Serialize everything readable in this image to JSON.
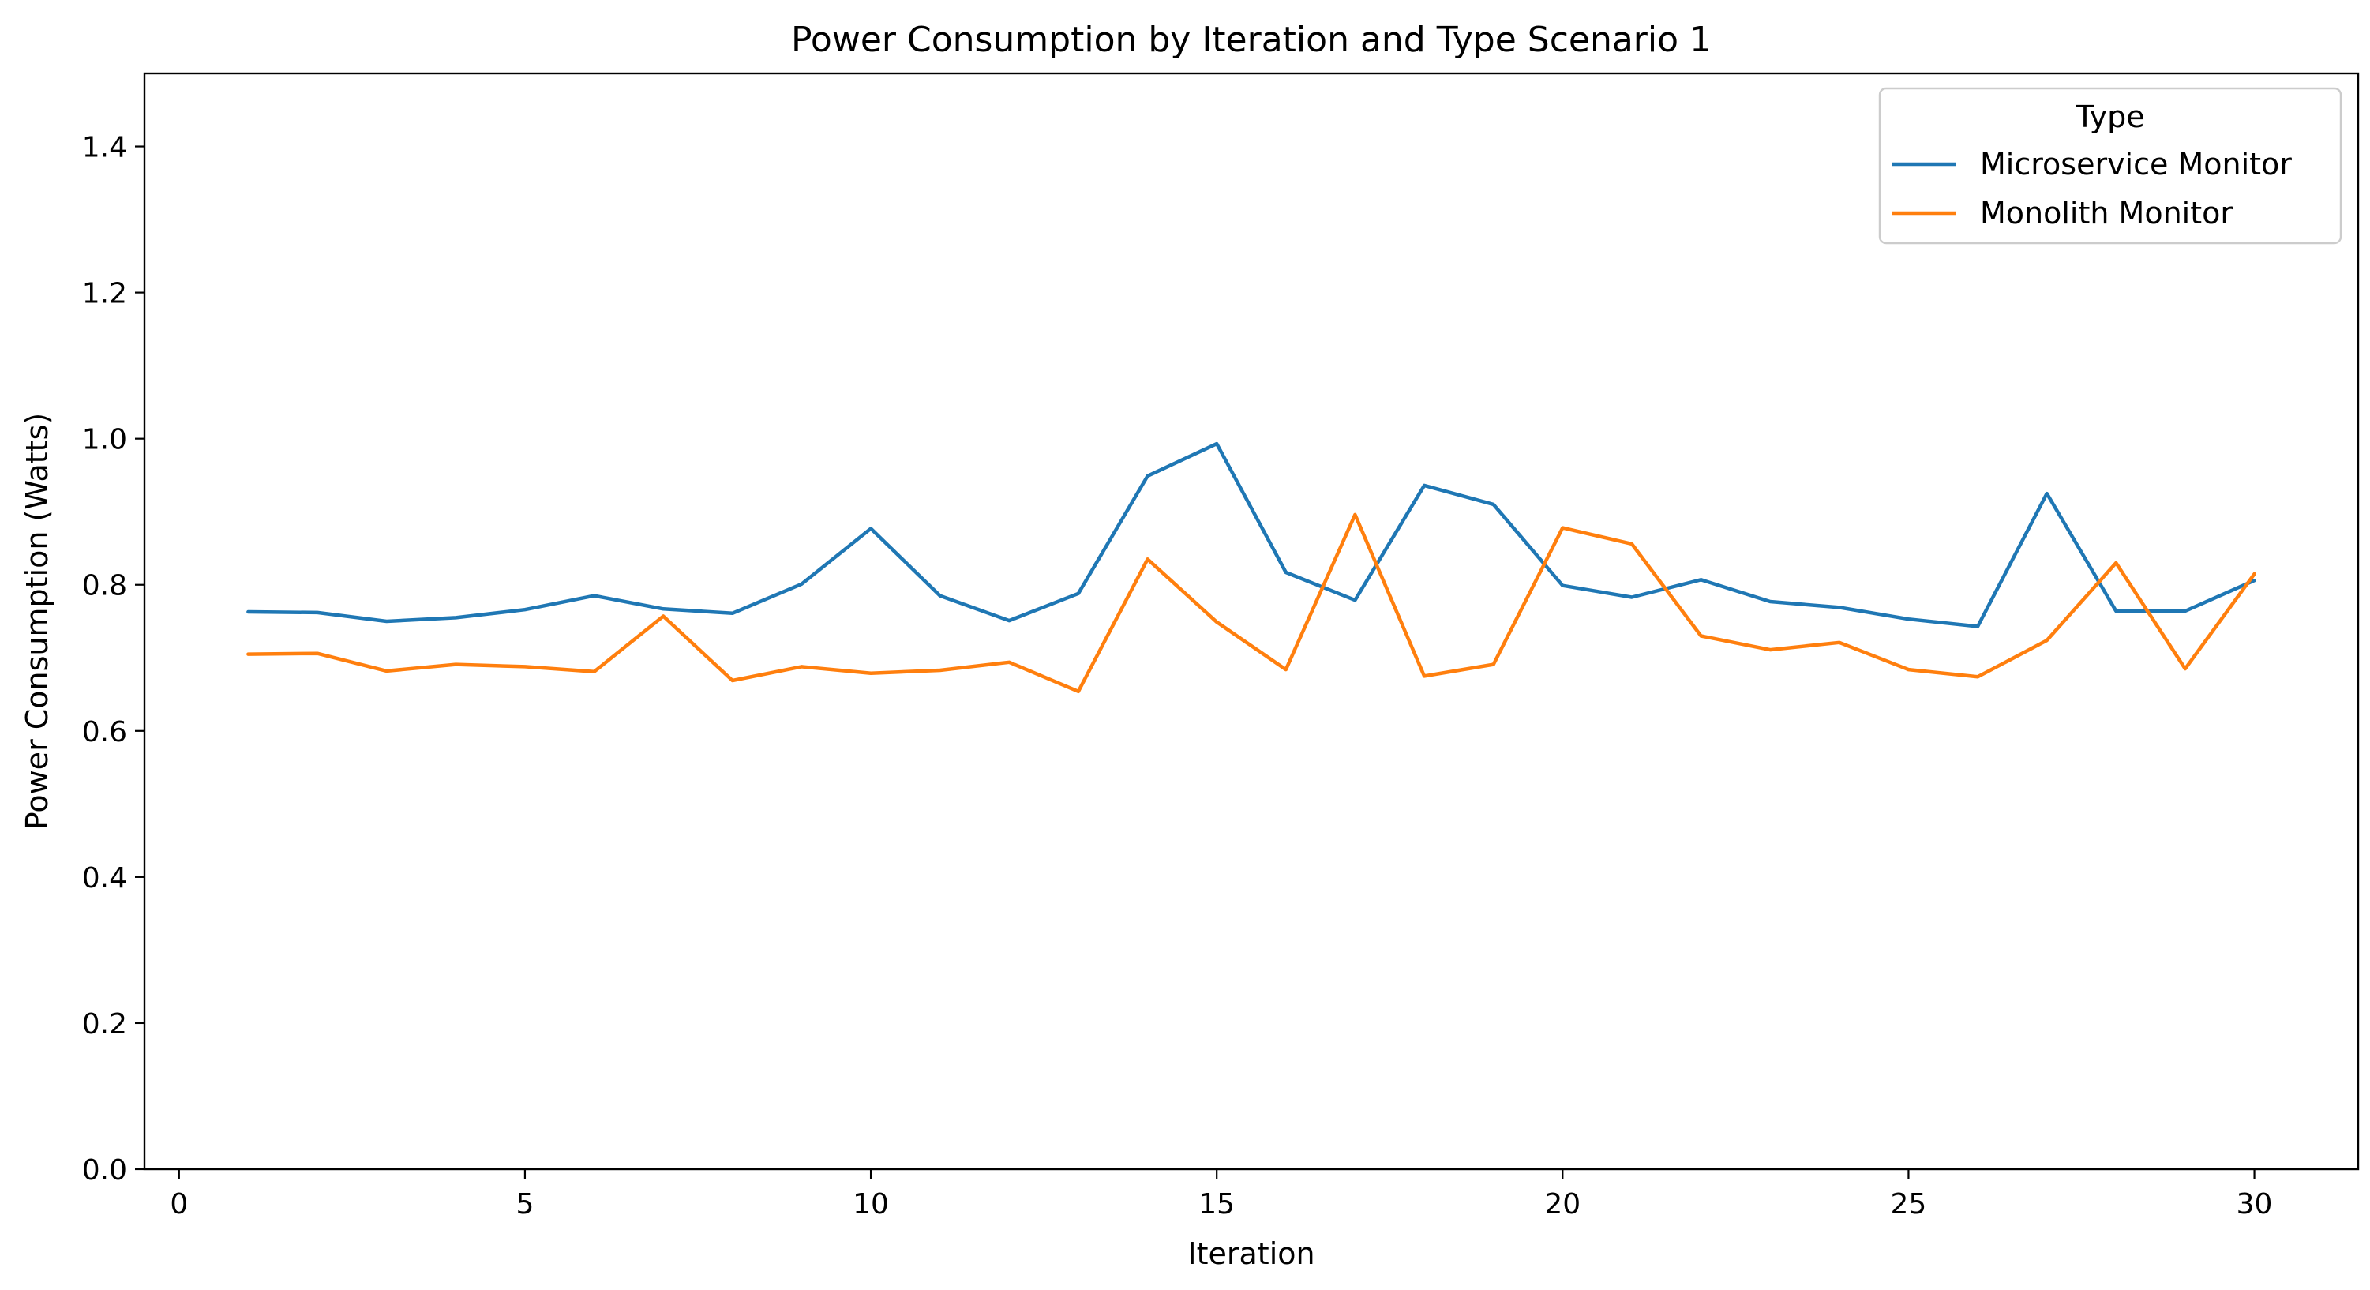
{
  "chart_data": {
    "type": "line",
    "title": "Power Consumption by Iteration and Type Scenario 1",
    "xlabel": "Iteration",
    "ylabel": "Power Consumption (Watts)",
    "xlim": [
      -0.5,
      31.5
    ],
    "ylim": [
      0.0,
      1.5
    ],
    "xticks": [
      0,
      5,
      10,
      15,
      20,
      25,
      30
    ],
    "yticks": [
      0.0,
      0.2,
      0.4,
      0.6,
      0.8,
      1.0,
      1.2,
      1.4
    ],
    "grid": false,
    "legend": {
      "title": "Type",
      "placement": "top-right"
    },
    "x": [
      1,
      2,
      3,
      4,
      5,
      6,
      7,
      8,
      9,
      10,
      11,
      12,
      13,
      14,
      15,
      16,
      17,
      18,
      19,
      20,
      21,
      22,
      23,
      24,
      25,
      26,
      27,
      28,
      29,
      30
    ],
    "series": [
      {
        "name": "Microservice Monitor",
        "color": "#1f77b4",
        "values": [
          0.763,
          0.762,
          0.75,
          0.755,
          0.766,
          0.785,
          0.767,
          0.761,
          0.801,
          0.877,
          0.785,
          0.751,
          0.788,
          0.949,
          0.993,
          0.817,
          0.779,
          0.936,
          0.91,
          0.799,
          0.783,
          0.807,
          0.777,
          0.769,
          0.753,
          0.743,
          0.925,
          0.764,
          0.764,
          0.806
        ]
      },
      {
        "name": "Monolith Monitor",
        "color": "#ff7f0e",
        "values": [
          0.705,
          0.706,
          0.682,
          0.691,
          0.688,
          0.681,
          0.757,
          0.669,
          0.688,
          0.679,
          0.683,
          0.694,
          0.654,
          0.835,
          0.749,
          0.684,
          0.896,
          0.675,
          0.691,
          0.878,
          0.856,
          0.73,
          0.711,
          0.721,
          0.684,
          0.674,
          0.724,
          0.83,
          0.685,
          0.815
        ]
      }
    ]
  }
}
